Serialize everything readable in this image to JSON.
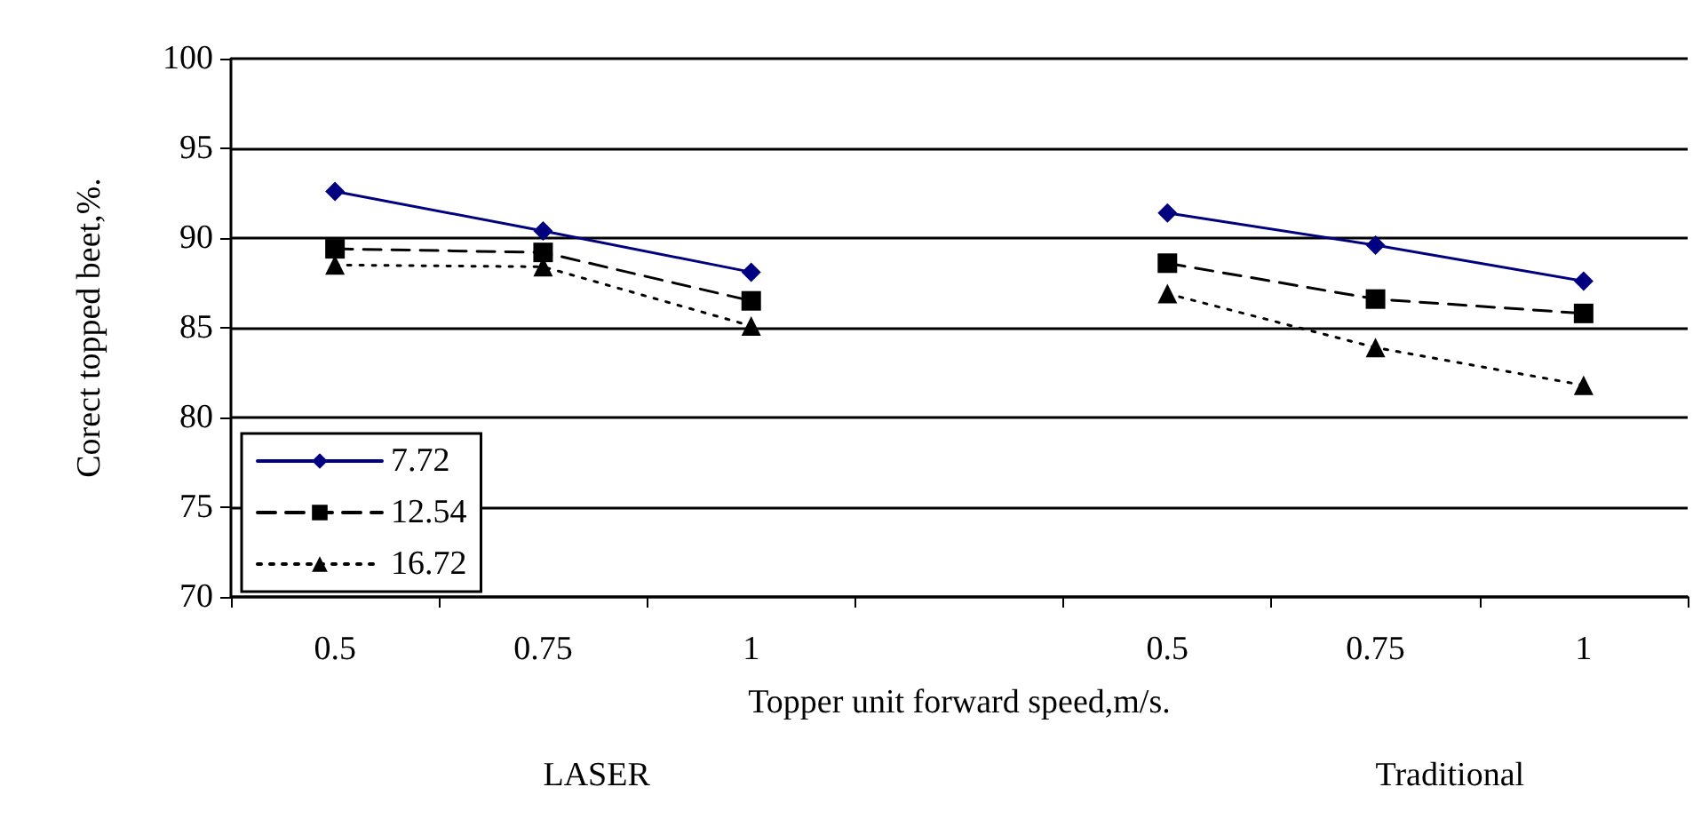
{
  "chart_data": {
    "type": "line",
    "xlabel": "Topper unit forward speed,m/s.",
    "ylabel": "Corect topped beet,%.",
    "categories": [
      "0.5",
      "0.75",
      "1",
      null,
      "0.5",
      "0.75",
      "1"
    ],
    "series": [
      {
        "name": "7.72",
        "color": "#000080",
        "marker": "diamond",
        "line_style": "solid",
        "values": [
          92.6,
          90.4,
          88.1,
          null,
          91.4,
          89.6,
          87.6
        ]
      },
      {
        "name": "12.54",
        "color": "#000000",
        "marker": "square",
        "line_style": "dashed",
        "values": [
          89.4,
          89.2,
          86.5,
          null,
          88.6,
          86.6,
          85.8
        ]
      },
      {
        "name": "16.72",
        "color": "#000000",
        "marker": "triangle",
        "line_style": "dotted",
        "values": [
          88.5,
          88.4,
          85.1,
          null,
          86.9,
          83.9,
          81.8
        ]
      }
    ],
    "ylim": [
      70,
      100
    ],
    "yticks": [
      70,
      75,
      80,
      85,
      90,
      95,
      100
    ],
    "grid": "y",
    "legend": "bottom left",
    "annotations": [
      "LASER",
      "Traditional"
    ]
  }
}
